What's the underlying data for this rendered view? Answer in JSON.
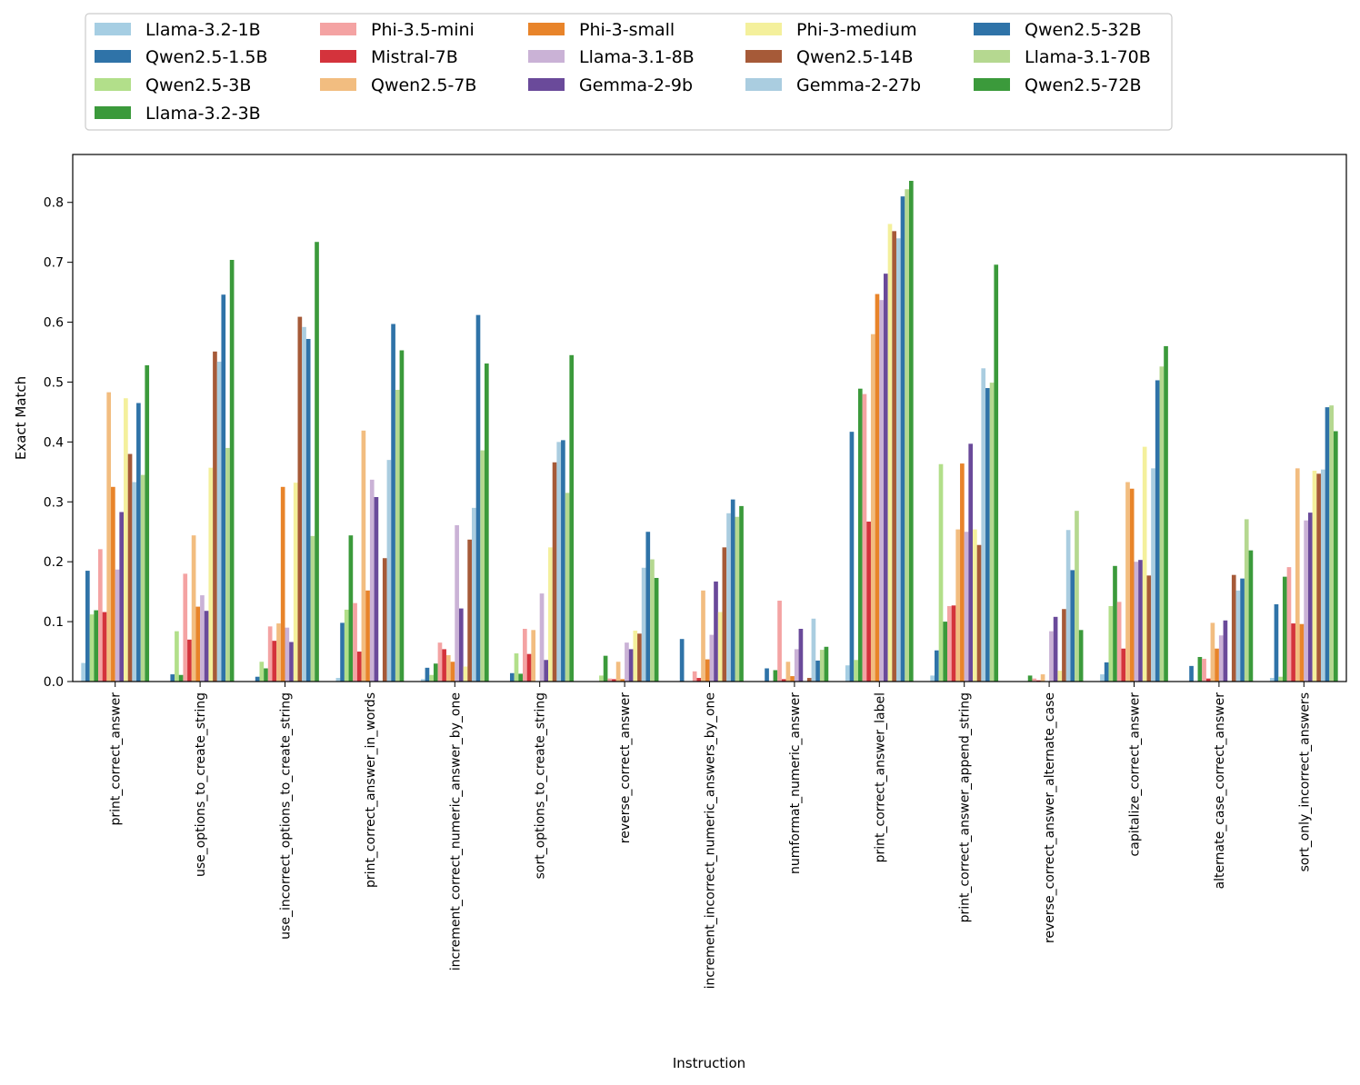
{
  "chart_data": {
    "type": "bar",
    "xlabel": "Instruction",
    "ylabel": "Exact Match",
    "ylim": [
      0,
      0.88
    ],
    "yticks": [
      "0.0",
      "0.1",
      "0.2",
      "0.3",
      "0.4",
      "0.5",
      "0.6",
      "0.7",
      "0.8"
    ],
    "legend_position": "top",
    "grid": false,
    "categories": [
      "print_correct_answer",
      "use_options_to_create_string",
      "use_incorrect_options_to_create_string",
      "print_correct_answer_in_words",
      "increment_correct_numeric_answer_by_one",
      "sort_options_to_create_string",
      "reverse_correct_answer",
      "increment_incorrect_numeric_answers_by_one",
      "numformat_numeric_answer",
      "print_correct_answer_label",
      "print_correct_answer_append_string",
      "reverse_correct_answer_alternate_case",
      "capitalize_correct_answer",
      "alternate_case_correct_answer",
      "sort_only_incorrect_answers"
    ],
    "series": [
      {
        "name": "Llama-3.2-1B",
        "color": "#a6cee3",
        "values": [
          0.031,
          0.0,
          0.0,
          0.006,
          0.004,
          0.0,
          0.0,
          0.0,
          0.0,
          0.027,
          0.01,
          0.0,
          0.012,
          0.0,
          0.006
        ]
      },
      {
        "name": "Qwen2.5-1.5B",
        "color": "#2f73a8",
        "values": [
          0.185,
          0.012,
          0.008,
          0.098,
          0.023,
          0.014,
          0.0,
          0.071,
          0.022,
          0.417,
          0.052,
          0.0,
          0.032,
          0.026,
          0.129
        ]
      },
      {
        "name": "Qwen2.5-3B",
        "color": "#b2df8a",
        "values": [
          0.112,
          0.084,
          0.033,
          0.12,
          0.011,
          0.047,
          0.01,
          0.0,
          0.0,
          0.036,
          0.363,
          0.0,
          0.126,
          0.0,
          0.008
        ]
      },
      {
        "name": "Llama-3.2-3B",
        "color": "#3b9a3b",
        "values": [
          0.119,
          0.011,
          0.022,
          0.244,
          0.03,
          0.013,
          0.043,
          0.0,
          0.019,
          0.489,
          0.1,
          0.01,
          0.193,
          0.041,
          0.175
        ]
      },
      {
        "name": "Phi-3.5-mini",
        "color": "#f4a3a3",
        "values": [
          0.221,
          0.18,
          0.092,
          0.131,
          0.065,
          0.088,
          0.005,
          0.017,
          0.135,
          0.48,
          0.126,
          0.005,
          0.133,
          0.038,
          0.191
        ]
      },
      {
        "name": "Mistral-7B",
        "color": "#d4333c",
        "values": [
          0.116,
          0.07,
          0.068,
          0.05,
          0.054,
          0.046,
          0.004,
          0.006,
          0.004,
          0.267,
          0.127,
          0.002,
          0.055,
          0.005,
          0.097
        ]
      },
      {
        "name": "Qwen2.5-7B",
        "color": "#f2bd80",
        "values": [
          0.483,
          0.244,
          0.097,
          0.419,
          0.044,
          0.086,
          0.033,
          0.152,
          0.033,
          0.58,
          0.254,
          0.012,
          0.333,
          0.098,
          0.356
        ]
      },
      {
        "name": "Phi-3-small",
        "color": "#e8842a",
        "values": [
          0.325,
          0.125,
          0.325,
          0.152,
          0.033,
          0.0,
          0.004,
          0.037,
          0.009,
          0.647,
          0.364,
          0.0,
          0.322,
          0.055,
          0.096
        ]
      },
      {
        "name": "Llama-3.1-8B",
        "color": "#cab2d6",
        "values": [
          0.187,
          0.144,
          0.09,
          0.337,
          0.261,
          0.147,
          0.065,
          0.078,
          0.054,
          0.637,
          0.25,
          0.084,
          0.2,
          0.077,
          0.269
        ]
      },
      {
        "name": "Gemma-2-9b",
        "color": "#6a4a9a",
        "values": [
          0.283,
          0.118,
          0.066,
          0.308,
          0.122,
          0.036,
          0.054,
          0.167,
          0.088,
          0.681,
          0.397,
          0.108,
          0.203,
          0.102,
          0.282
        ]
      },
      {
        "name": "Phi-3-medium",
        "color": "#f4f09c",
        "values": [
          0.473,
          0.357,
          0.332,
          0.0,
          0.025,
          0.224,
          0.085,
          0.116,
          0.0,
          0.764,
          0.254,
          0.018,
          0.392,
          0.0,
          0.352
        ]
      },
      {
        "name": "Qwen2.5-14B",
        "color": "#a65a38",
        "values": [
          0.38,
          0.551,
          0.609,
          0.206,
          0.237,
          0.366,
          0.08,
          0.224,
          0.006,
          0.752,
          0.228,
          0.121,
          0.177,
          0.178,
          0.347
        ]
      },
      {
        "name": "Gemma-2-27b",
        "color": "#aacde0",
        "values": [
          0.333,
          0.534,
          0.592,
          0.37,
          0.29,
          0.4,
          0.19,
          0.281,
          0.105,
          0.74,
          0.523,
          0.253,
          0.356,
          0.152,
          0.354
        ]
      },
      {
        "name": "Qwen2.5-32B",
        "color": "#2f73a8",
        "values": [
          0.465,
          0.646,
          0.572,
          0.597,
          0.612,
          0.403,
          0.25,
          0.304,
          0.035,
          0.81,
          0.49,
          0.186,
          0.503,
          0.172,
          0.458
        ]
      },
      {
        "name": "Llama-3.1-70B",
        "color": "#b5d890",
        "values": [
          0.345,
          0.39,
          0.243,
          0.487,
          0.386,
          0.315,
          0.204,
          0.275,
          0.053,
          0.822,
          0.499,
          0.285,
          0.526,
          0.271,
          0.461
        ]
      },
      {
        "name": "Qwen2.5-72B",
        "color": "#3b9a3b",
        "values": [
          0.528,
          0.704,
          0.734,
          0.553,
          0.531,
          0.545,
          0.173,
          0.293,
          0.058,
          0.836,
          0.696,
          0.086,
          0.56,
          0.219,
          0.418
        ]
      }
    ]
  }
}
